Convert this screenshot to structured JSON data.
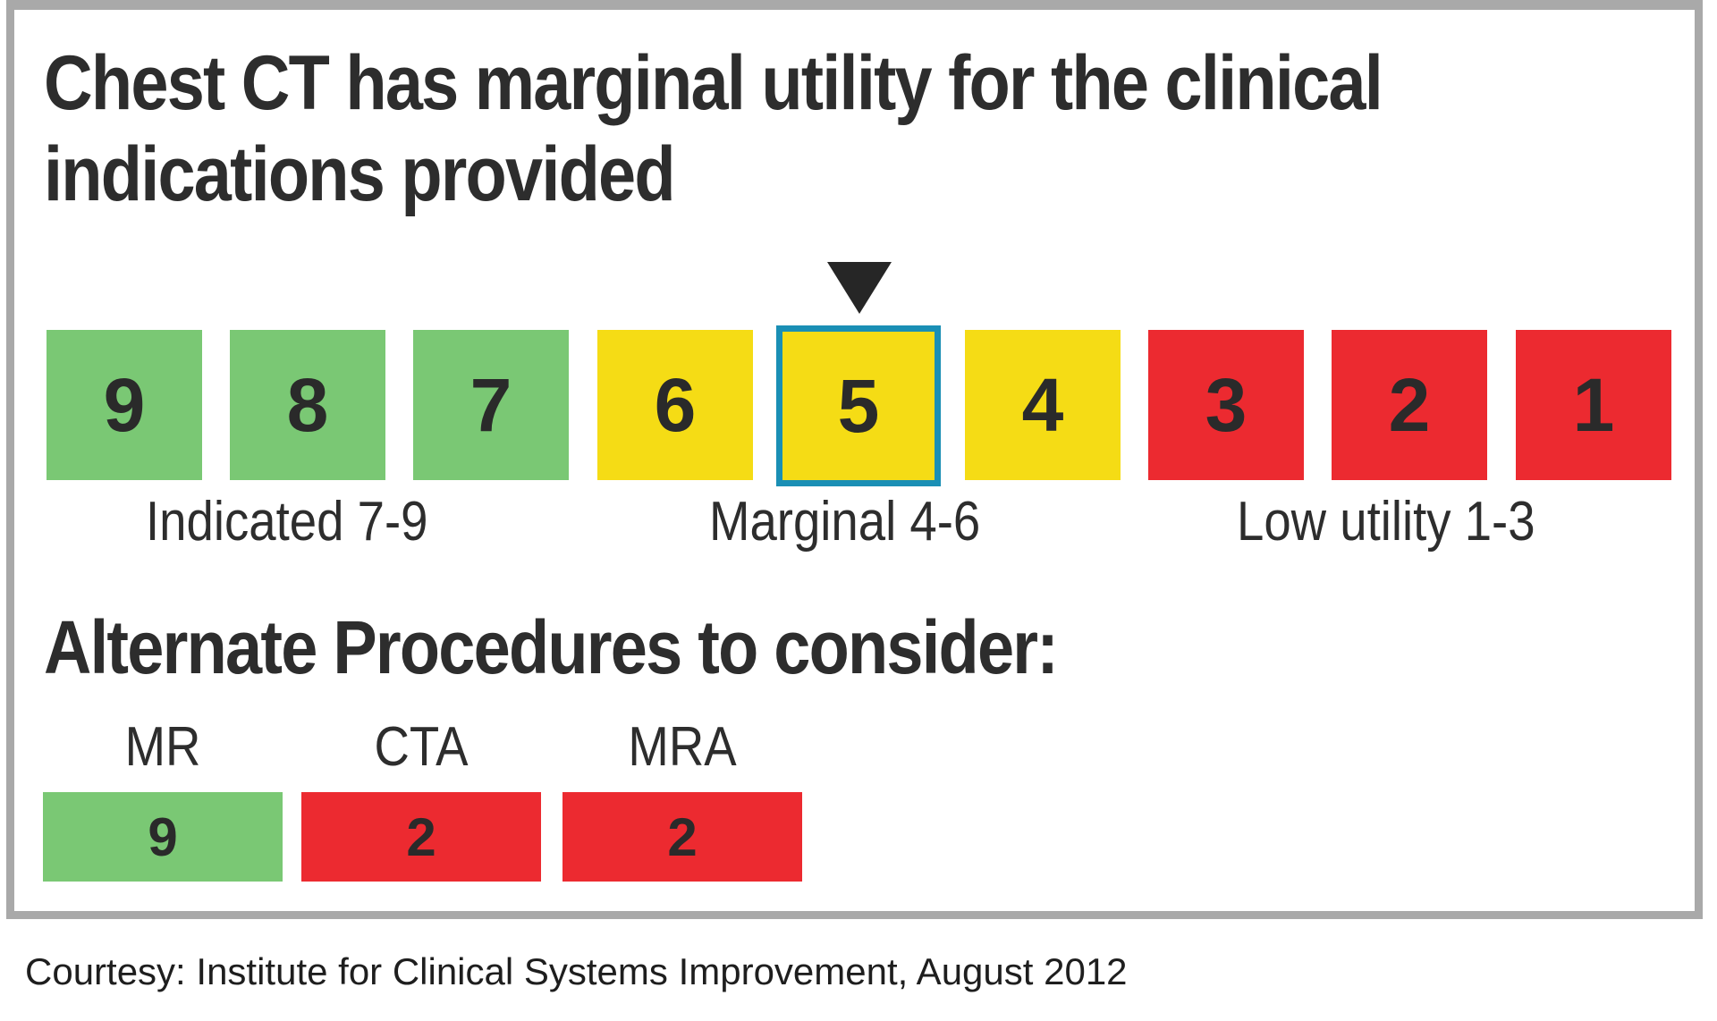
{
  "title": "Chest CT has marginal utility for the clinical indications provided",
  "selected_score": 5,
  "colors": {
    "green": "#7ac874",
    "yellow": "#f5dc15",
    "red": "#ec2a30",
    "selected_border": "#1a8fb5",
    "frame": "#a9a9a9"
  },
  "scale": [
    {
      "value": "9",
      "color": "green"
    },
    {
      "value": "8",
      "color": "green"
    },
    {
      "value": "7",
      "color": "green"
    },
    {
      "value": "6",
      "color": "yellow"
    },
    {
      "value": "5",
      "color": "yellow"
    },
    {
      "value": "4",
      "color": "yellow"
    },
    {
      "value": "3",
      "color": "red"
    },
    {
      "value": "2",
      "color": "red"
    },
    {
      "value": "1",
      "color": "red"
    }
  ],
  "ranges": {
    "indicated": "Indicated 7-9",
    "marginal": "Marginal 4-6",
    "low": "Low utility 1-3"
  },
  "alternates_heading": "Alternate Procedures to consider:",
  "alternates": [
    {
      "name": "MR",
      "score": "9",
      "color": "green"
    },
    {
      "name": "CTA",
      "score": "2",
      "color": "red"
    },
    {
      "name": "MRA",
      "score": "2",
      "color": "red"
    }
  ],
  "credit": "Courtesy: Institute for Clinical Systems Improvement, August 2012",
  "pointer_icon": "triangle-down-icon"
}
